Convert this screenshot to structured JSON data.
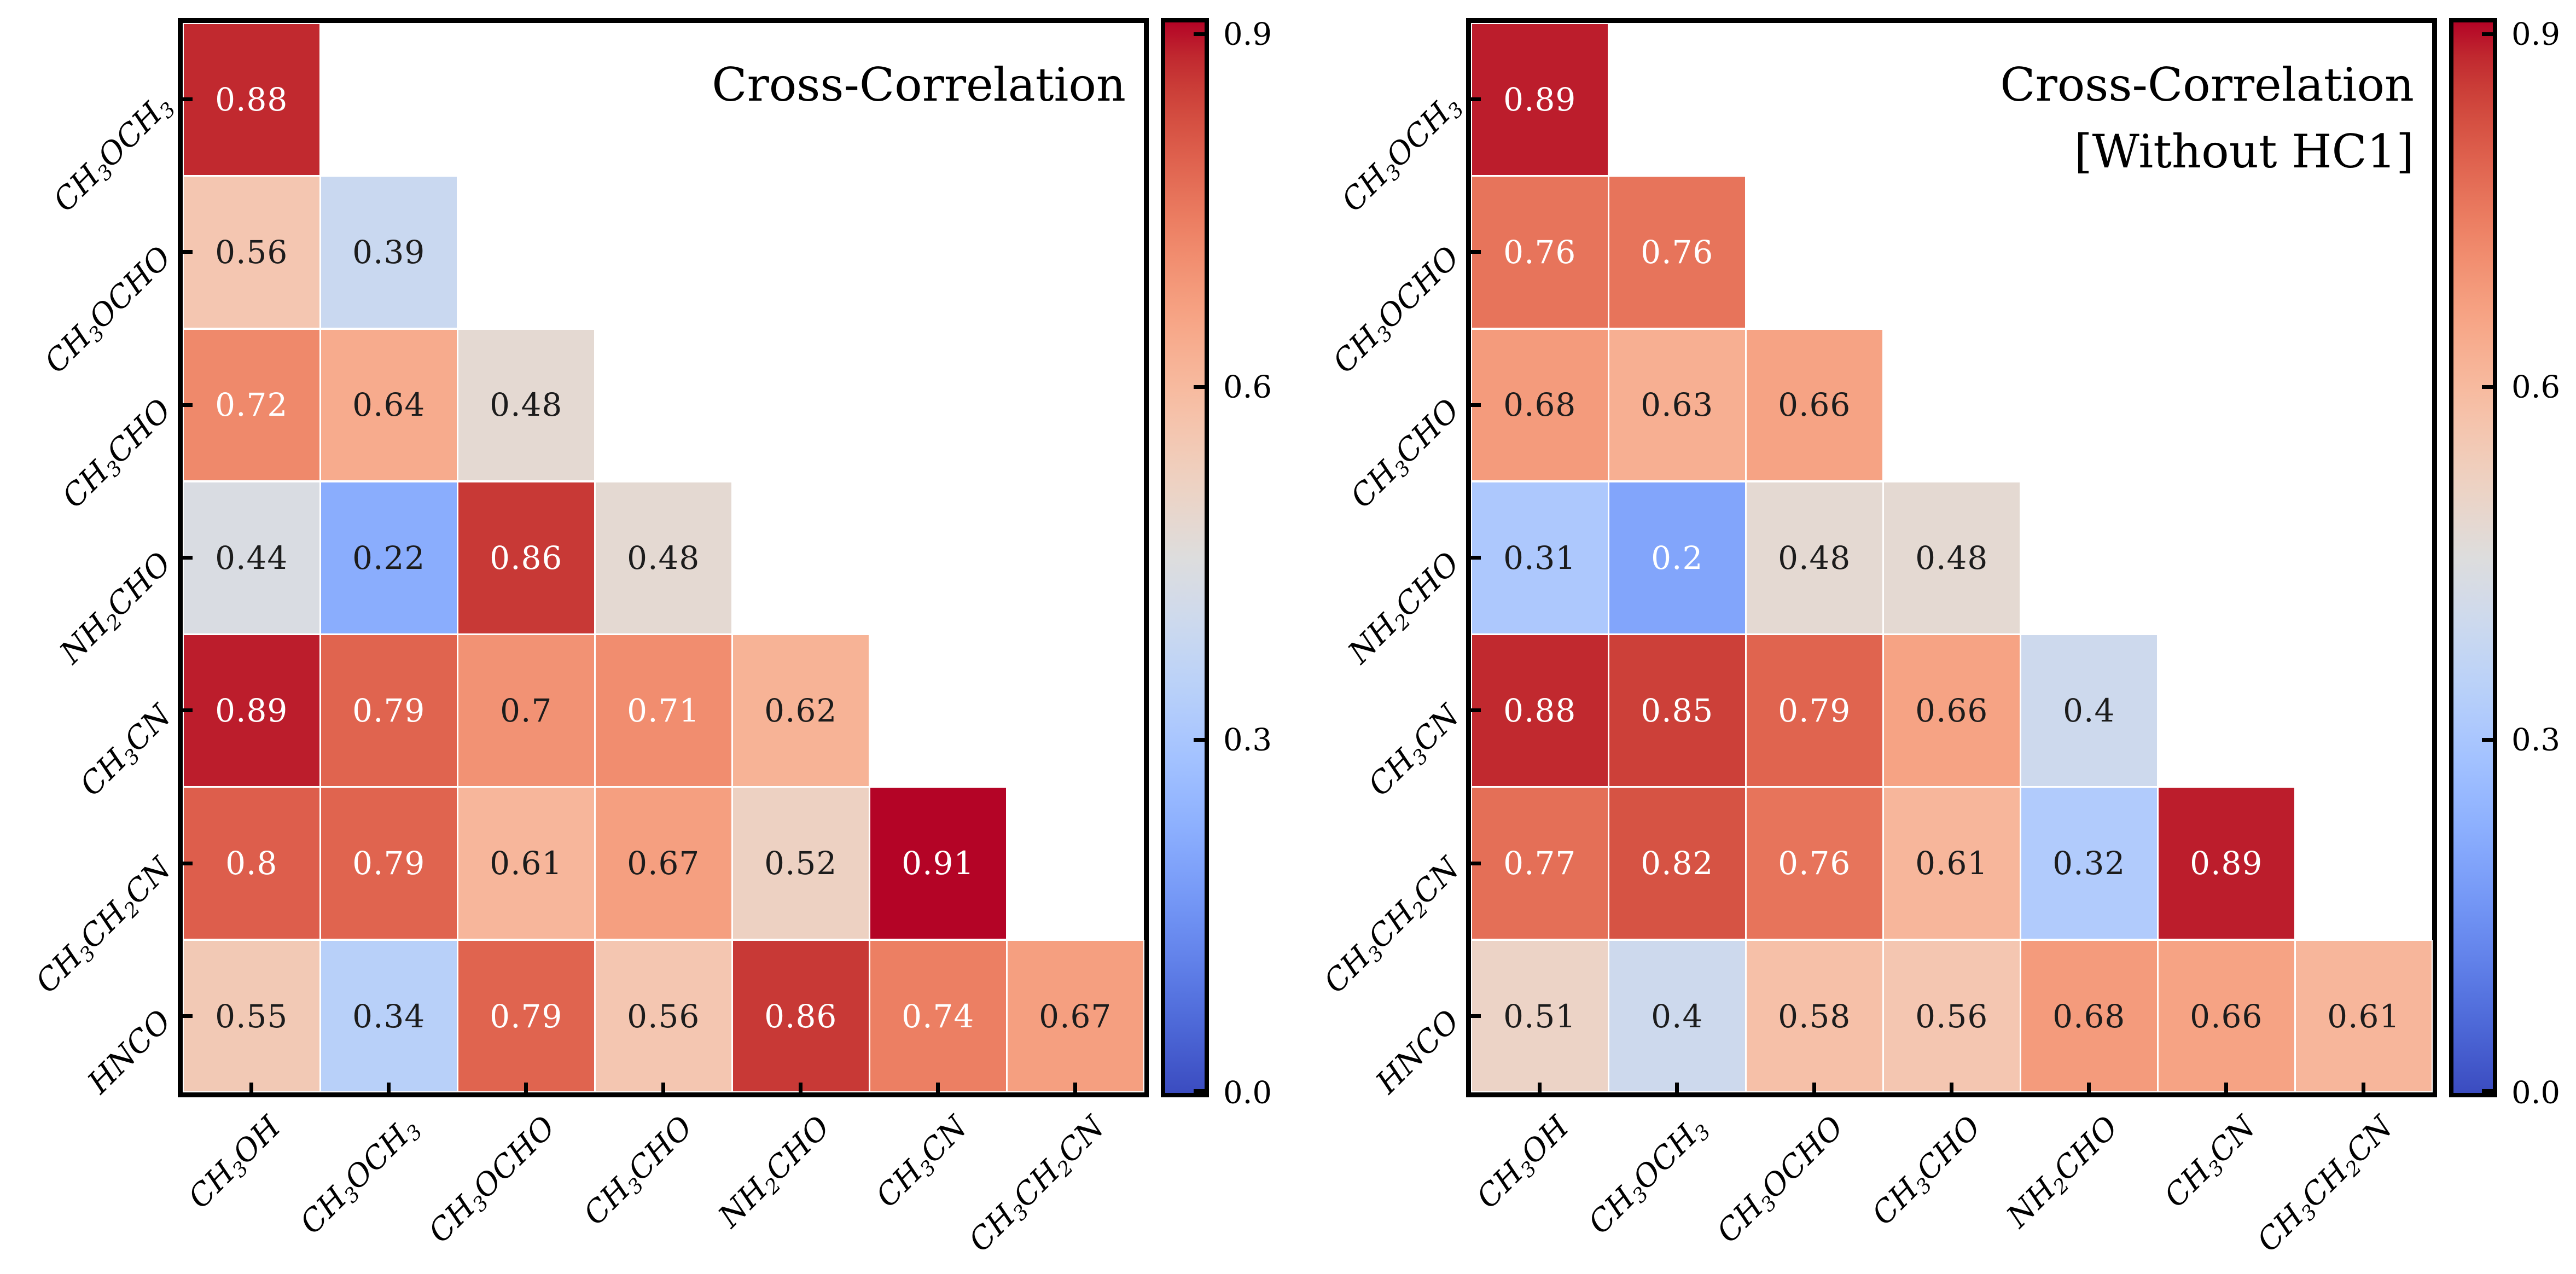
{
  "chart_data": [
    {
      "type": "heatmap",
      "panel": "left",
      "title_lines": [
        "Cross-Correlation"
      ],
      "x_labels": [
        "CH_3OH",
        "CH_3OCH_3",
        "CH_3OCHO",
        "CH_3CHO",
        "NH_2CHO",
        "CH_3CN",
        "CH_3CH_2CN"
      ],
      "y_labels": [
        "CH_3OCH_3",
        "CH_3OCHO",
        "CH_3CHO",
        "NH_2CHO",
        "CH_3CN",
        "CH_3CH_2CN",
        "HNCO"
      ],
      "values": [
        [
          "0.88"
        ],
        [
          "0.56",
          "0.39"
        ],
        [
          "0.72",
          "0.64",
          "0.48"
        ],
        [
          "0.44",
          "0.22",
          "0.86",
          "0.48"
        ],
        [
          "0.89",
          "0.79",
          "0.7",
          "0.71",
          "0.62"
        ],
        [
          "0.8",
          "0.79",
          "0.61",
          "0.67",
          "0.52",
          "0.91"
        ],
        [
          "0.55",
          "0.34",
          "0.79",
          "0.56",
          "0.86",
          "0.74",
          "0.67"
        ]
      ],
      "shape": "lower-triangular",
      "colormap": "coolwarm",
      "vmin": 0.0,
      "vmax": 0.91,
      "colorbar_ticks": [
        "0.9",
        "0.6",
        "0.3",
        "0.0"
      ],
      "colorbar_position": "right",
      "grid": false
    },
    {
      "type": "heatmap",
      "panel": "right",
      "title_lines": [
        "Cross-Correlation",
        "[Without HC1]"
      ],
      "x_labels": [
        "CH_3OH",
        "CH_3OCH_3",
        "CH_3OCHO",
        "CH_3CHO",
        "NH_2CHO",
        "CH_3CN",
        "CH_3CH_2CN"
      ],
      "y_labels": [
        "CH_3OCH_3",
        "CH_3OCHO",
        "CH_3CHO",
        "NH_2CHO",
        "CH_3CN",
        "CH_3CH_2CN",
        "HNCO"
      ],
      "values": [
        [
          "0.89"
        ],
        [
          "0.76",
          "0.76"
        ],
        [
          "0.68",
          "0.63",
          "0.66"
        ],
        [
          "0.31",
          "0.2",
          "0.48",
          "0.48"
        ],
        [
          "0.88",
          "0.85",
          "0.79",
          "0.66",
          "0.4"
        ],
        [
          "0.77",
          "0.82",
          "0.76",
          "0.61",
          "0.32",
          "0.89"
        ],
        [
          "0.51",
          "0.4",
          "0.58",
          "0.56",
          "0.68",
          "0.66",
          "0.61"
        ]
      ],
      "shape": "lower-triangular",
      "colormap": "coolwarm",
      "vmin": 0.0,
      "vmax": 0.91,
      "colorbar_ticks": [
        "0.9",
        "0.6",
        "0.3",
        "0.0"
      ],
      "colorbar_position": "right",
      "grid": false
    }
  ]
}
